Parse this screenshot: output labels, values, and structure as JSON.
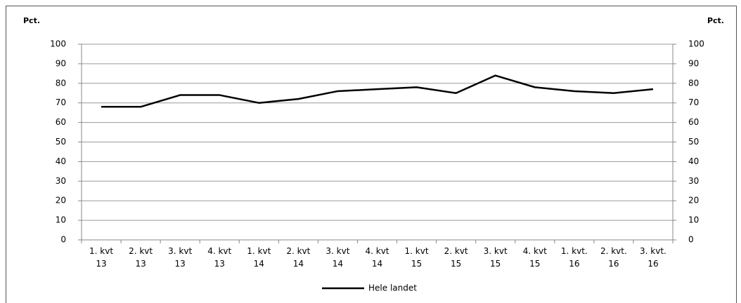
{
  "chart_data": {
    "type": "line",
    "ylabel": "Pct.",
    "y2label": "Pct.",
    "categories": [
      [
        "1. kvt",
        "13"
      ],
      [
        "2. kvt",
        "13"
      ],
      [
        "3. kvt",
        "13"
      ],
      [
        "4. kvt",
        "13"
      ],
      [
        "1. kvt",
        "14"
      ],
      [
        "2. kvt",
        "14"
      ],
      [
        "3. kvt",
        "14"
      ],
      [
        "4. kvt",
        "14"
      ],
      [
        "1. kvt",
        "15"
      ],
      [
        "2. kvt",
        "15"
      ],
      [
        "3. kvt",
        "15"
      ],
      [
        "4. kvt",
        "15"
      ],
      [
        "1. kvt.",
        "16"
      ],
      [
        "2. kvt.",
        "16"
      ],
      [
        "3. kvt.",
        "16"
      ]
    ],
    "series": [
      {
        "name": "Hele landet",
        "color": "#000000",
        "values": [
          68,
          68,
          74,
          74,
          70,
          72,
          76,
          77,
          78,
          75,
          84,
          78,
          76,
          75,
          77
        ]
      }
    ],
    "ylim": [
      0,
      100
    ],
    "yticks": [
      0,
      10,
      20,
      30,
      40,
      50,
      60,
      70,
      80,
      90,
      100
    ],
    "y2lim": [
      0,
      100
    ],
    "y2ticks": [
      0,
      10,
      20,
      30,
      40,
      50,
      60,
      70,
      80,
      90,
      100
    ],
    "grid": true,
    "legend": "bottom"
  }
}
